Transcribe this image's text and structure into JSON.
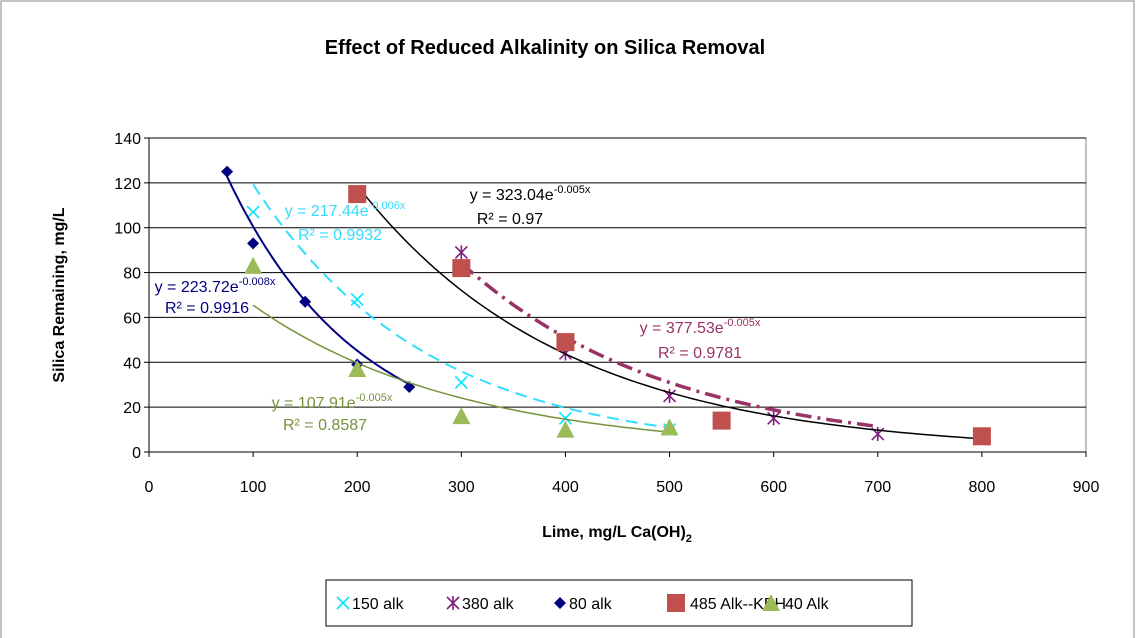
{
  "chart_data": {
    "type": "scatter",
    "title": "Effect of Reduced Alkalinity on Silica Removal",
    "x_label": "Lime, mg/L Ca(OH)",
    "x_label_sub": "2",
    "y_label": "Silica Remaining, mg/L",
    "xlim": [
      0,
      900
    ],
    "xticks": [
      0,
      100,
      200,
      300,
      400,
      500,
      600,
      700,
      800,
      900
    ],
    "ylim": [
      0,
      140
    ],
    "yticks": [
      0,
      20,
      40,
      60,
      80,
      100,
      120,
      140
    ],
    "grid": true,
    "legend": "bottom",
    "series": [
      {
        "name": "150 alk",
        "color": "#00e5ff",
        "marker": "x",
        "x": [
          100,
          200,
          300,
          400,
          500
        ],
        "values": [
          107,
          68,
          31,
          15,
          10
        ],
        "trendline": {
          "color": "#33ddff",
          "a": 217.44,
          "b": -0.006,
          "r2": 0.9932,
          "label": "y = 217.44e",
          "label_exp": "-0.006x",
          "r2_label": "R² = 0.9932"
        }
      },
      {
        "name": "380 alk",
        "color": "#7f1f7f",
        "marker": "asterisk",
        "x": [
          300,
          400,
          500,
          600,
          700
        ],
        "values": [
          89,
          44,
          25,
          15,
          8
        ],
        "trendline": {
          "color": "#993366",
          "a": 377.53,
          "b": -0.005,
          "r2": 0.9781,
          "label": "y = 377.53e",
          "label_exp": "-0.005x",
          "r2_label": "R² = 0.9781"
        }
      },
      {
        "name": "80 alk",
        "color": "#000080",
        "marker": "diamond",
        "x": [
          75,
          100,
          150,
          200,
          250
        ],
        "values": [
          125,
          93,
          67,
          39,
          29
        ],
        "trendline": {
          "color": "#000080",
          "a": 223.72,
          "b": -0.008,
          "r2": 0.9916,
          "label": "y = 223.72e",
          "label_exp": "-0.008x",
          "r2_label": "R² = 0.9916"
        }
      },
      {
        "name": "485 Alk--KBH",
        "color": "#c0504d",
        "marker": "square",
        "x": [
          200,
          300,
          400,
          550,
          800
        ],
        "values": [
          115,
          82,
          49,
          14,
          7
        ],
        "trendline": {
          "color": "#000000",
          "a": 323.04,
          "b": -0.005,
          "r2": 0.97,
          "label": "y = 323.04e",
          "label_exp": "-0.005x",
          "r2_label": "R² = 0.97"
        }
      },
      {
        "name": "40 Alk",
        "color": "#9bbb59",
        "marker": "triangle",
        "x": [
          100,
          200,
          300,
          400,
          500
        ],
        "values": [
          83,
          37,
          16,
          10,
          11
        ],
        "trendline": {
          "color": "#77933c",
          "a": 107.91,
          "b": -0.005,
          "r2": 0.8587,
          "label": "y = 107.91e",
          "label_exp": "-0.005x",
          "r2_label": "R² = 0.8587"
        }
      }
    ]
  }
}
